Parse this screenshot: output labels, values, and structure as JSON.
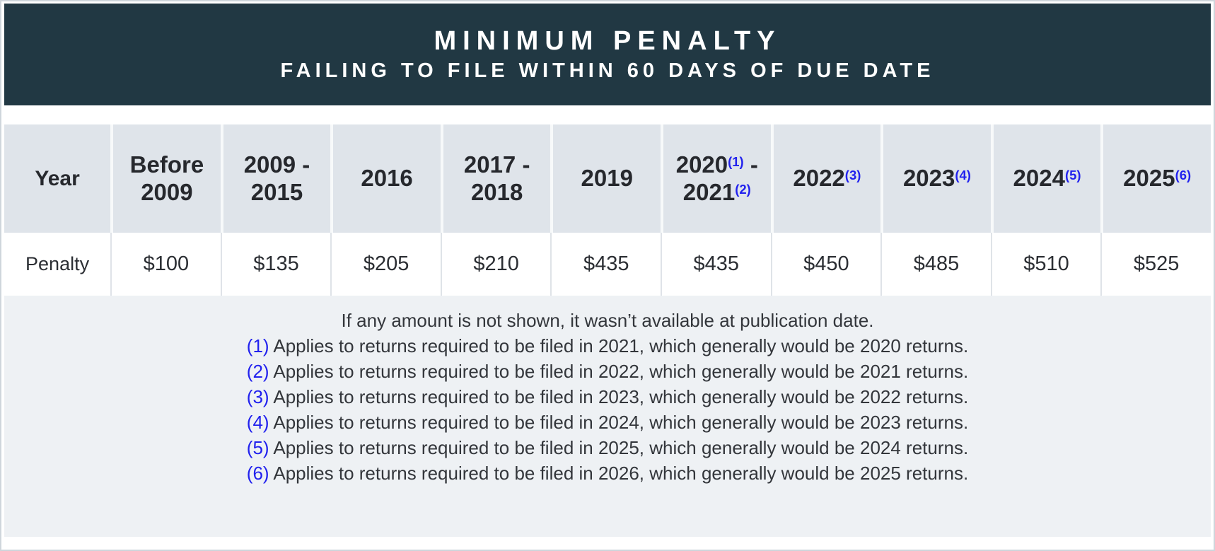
{
  "banner": {
    "title": "MINIMUM PENALTY",
    "subtitle": "FAILING TO FILE WITHIN 60 DAYS OF DUE DATE"
  },
  "colors": {
    "banner_bg": "#213843",
    "header_row_bg": "#dfe4ea",
    "notes_bg": "#eef1f4",
    "footnote_blue": "#2121ee"
  },
  "table": {
    "row_header": "Year",
    "penalty_label": "Penalty",
    "columns": [
      {
        "line1": "Before",
        "line2": "2009",
        "penalty": "$100"
      },
      {
        "line1": "2009 -",
        "line2": "2015",
        "penalty": "$135"
      },
      {
        "line1": "2016",
        "penalty": "$205"
      },
      {
        "line1": "2017 -",
        "line2": "2018",
        "penalty": "$210"
      },
      {
        "line1": "2019",
        "penalty": "$435"
      },
      {
        "line1": "2020",
        "sup1": "(1)",
        "dash1": " -",
        "line2": "2021",
        "sup2": "(2)",
        "penalty": "$435"
      },
      {
        "line1": "2022",
        "sup1": "(3)",
        "penalty": "$450"
      },
      {
        "line1": "2023",
        "sup1": "(4)",
        "penalty": "$485"
      },
      {
        "line1": "2024",
        "sup1": "(5)",
        "penalty": "$510"
      },
      {
        "line1": "2025",
        "sup1": "(6)",
        "penalty": "$525"
      }
    ]
  },
  "notes": {
    "intro": "If any amount is not shown, it wasn’t available at publication date.",
    "items": [
      {
        "ref": "(1)",
        "text": " Applies to returns required to be filed in 2021, which generally would be 2020 returns."
      },
      {
        "ref": "(2)",
        "text": " Applies to returns required to be filed in 2022, which generally would be 2021 returns."
      },
      {
        "ref": "(3)",
        "text": " Applies to returns required to be filed in 2023, which generally would be 2022 returns."
      },
      {
        "ref": "(4)",
        "text": " Applies to returns required to be filed in 2024, which generally would be 2023 returns."
      },
      {
        "ref": "(5)",
        "text": " Applies to returns required to be filed in 2025, which generally would be 2024 returns."
      },
      {
        "ref": "(6)",
        "text": " Applies to returns required to be filed in 2026, which generally would be 2025 returns."
      }
    ]
  }
}
